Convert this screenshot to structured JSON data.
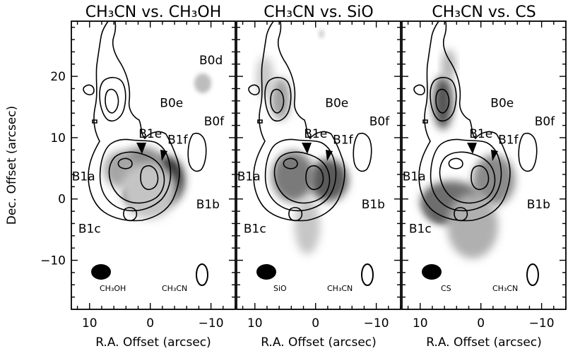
{
  "chart_data": {
    "type": "contour",
    "xlabel": "R.A. Offset (arcsec)",
    "ylabel": "Dec. Offset (arcsec)",
    "xlim": [
      13,
      -14
    ],
    "ylim": [
      -18,
      29
    ],
    "xticks": [
      10,
      0,
      -10
    ],
    "yticks": [
      20,
      10,
      0,
      -10
    ],
    "tick_labels_x": [
      "10",
      "0",
      "−10"
    ],
    "tick_labels_y": [
      "20",
      "10",
      "0",
      "−10"
    ],
    "contour_tracer": "CH3CN",
    "contour_levels": 5,
    "panels": [
      {
        "title": "CH₃CN vs. CH₃OH",
        "greyscale_tracer": "CH₃OH",
        "contour_tracer": "CH₃CN",
        "regions": [
          {
            "label": "B0d",
            "x": -10,
            "y": 22
          },
          {
            "label": "B0e",
            "x": -3.5,
            "y": 15
          },
          {
            "label": "B0f",
            "x": -10.5,
            "y": 12
          },
          {
            "label": "B1e",
            "x": 0,
            "y": 10
          },
          {
            "label": "B1f",
            "x": -4.5,
            "y": 9
          },
          {
            "label": "B1a",
            "x": 11,
            "y": 3
          },
          {
            "label": "B1b",
            "x": -9.5,
            "y": -1.5
          },
          {
            "label": "B1c",
            "x": 10,
            "y": -5.5
          }
        ]
      },
      {
        "title": "CH₃CN vs. SiO",
        "greyscale_tracer": "SiO",
        "contour_tracer": "CH₃CN",
        "regions": [
          {
            "label": "B0e",
            "x": -3.5,
            "y": 15
          },
          {
            "label": "B0f",
            "x": -10.5,
            "y": 12
          },
          {
            "label": "B1e",
            "x": 0,
            "y": 10
          },
          {
            "label": "B1f",
            "x": -4.5,
            "y": 9
          },
          {
            "label": "B1a",
            "x": 11,
            "y": 3
          },
          {
            "label": "B1b",
            "x": -9.5,
            "y": -1.5
          },
          {
            "label": "B1c",
            "x": 10,
            "y": -5.5
          }
        ]
      },
      {
        "title": "CH₃CN vs. CS",
        "greyscale_tracer": "CS",
        "contour_tracer": "CH₃CN",
        "regions": [
          {
            "label": "B0e",
            "x": -3.5,
            "y": 15
          },
          {
            "label": "B0f",
            "x": -10.5,
            "y": 12
          },
          {
            "label": "B1e",
            "x": 0,
            "y": 10
          },
          {
            "label": "B1f",
            "x": -4.5,
            "y": 9
          },
          {
            "label": "B1a",
            "x": 11,
            "y": 3
          },
          {
            "label": "B1b",
            "x": -9.5,
            "y": -1.5
          },
          {
            "label": "B1c",
            "x": 10,
            "y": -5.5
          }
        ]
      }
    ]
  }
}
